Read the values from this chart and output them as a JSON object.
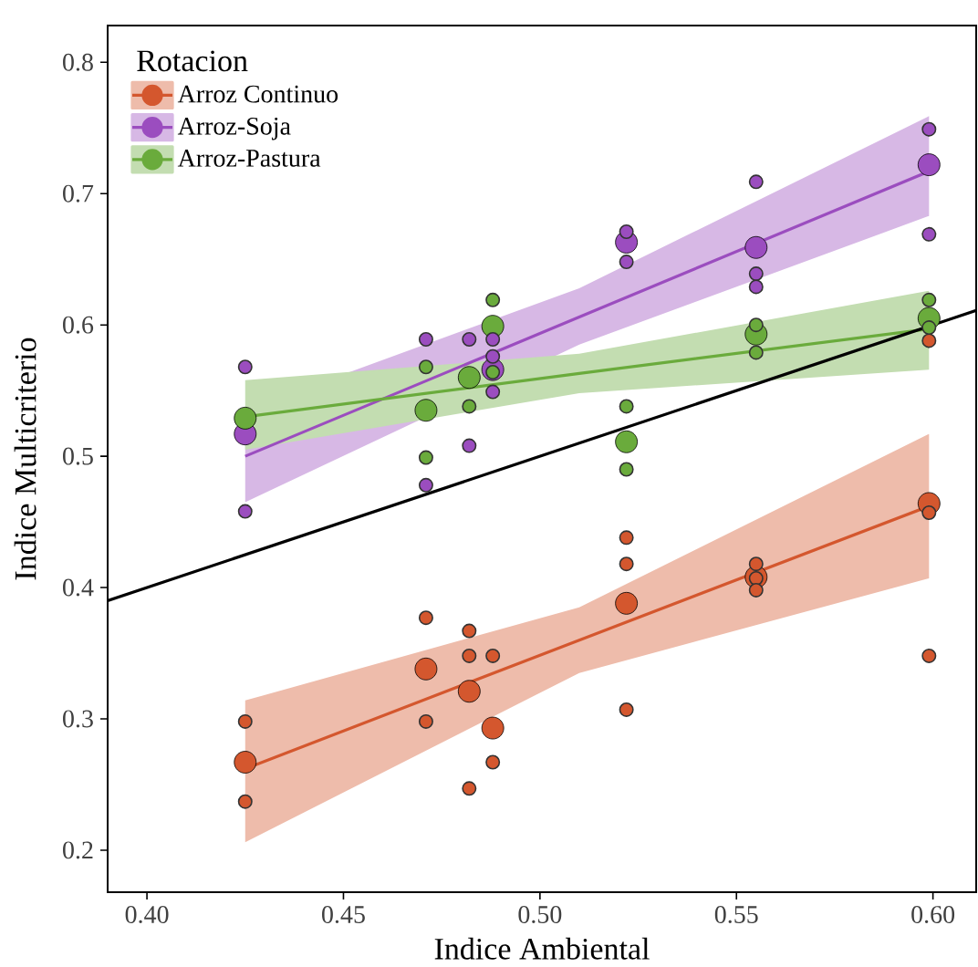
{
  "chart_data": {
    "type": "scatter",
    "xlabel": "Indice Ambiental",
    "ylabel": "Indice Multicriterio",
    "legend_title": "Rotacion",
    "legend": "top left",
    "grid": false,
    "marker": "circle",
    "xlim": [
      0.39,
      0.611
    ],
    "ylim": [
      0.168,
      0.828
    ],
    "xticks": [
      {
        "value": 0.4,
        "label": "0.40"
      },
      {
        "value": 0.45,
        "label": "0.45"
      },
      {
        "value": 0.5,
        "label": "0.50"
      },
      {
        "value": 0.55,
        "label": "0.55"
      },
      {
        "value": 0.6,
        "label": "0.60"
      }
    ],
    "yticks": [
      {
        "value": 0.2,
        "label": "0.2"
      },
      {
        "value": 0.3,
        "label": "0.3"
      },
      {
        "value": 0.4,
        "label": "0.4"
      },
      {
        "value": 0.5,
        "label": "0.5"
      },
      {
        "value": 0.6,
        "label": "0.6"
      },
      {
        "value": 0.7,
        "label": "0.7"
      },
      {
        "value": 0.8,
        "label": "0.8"
      }
    ],
    "series": [
      {
        "type": "line",
        "marker": "none",
        "name": "Arroz Continuo",
        "color": "#d4572e",
        "x": [
          0.425,
          0.51,
          0.599
        ],
        "values": [
          0.262,
          0.36,
          0.462
        ],
        "lower": [
          0.206,
          0.335,
          0.407
        ],
        "upper": [
          0.314,
          0.385,
          0.517
        ]
      },
      {
        "color": "#d4572e",
        "x": [
          0.425,
          0.425,
          0.471,
          0.471,
          0.482,
          0.482,
          0.482,
          0.488,
          0.488,
          0.522,
          0.522,
          0.522,
          0.555,
          0.555,
          0.555,
          0.599,
          0.599,
          0.599
        ],
        "values": [
          0.298,
          0.237,
          0.377,
          0.298,
          0.367,
          0.348,
          0.247,
          0.348,
          0.267,
          0.438,
          0.418,
          0.307,
          0.418,
          0.407,
          0.398,
          0.457,
          0.348,
          0.588
        ]
      },
      {
        "color": "#d4572e",
        "x": [
          0.425,
          0.471,
          0.482,
          0.488,
          0.522,
          0.555,
          0.599
        ],
        "values": [
          0.267,
          0.338,
          0.321,
          0.293,
          0.388,
          0.408,
          0.464
        ]
      },
      {
        "type": "line",
        "marker": "none",
        "name": "Arroz-Soja",
        "color": "#9b4dbf",
        "x": [
          0.425,
          0.51,
          0.599
        ],
        "values": [
          0.5,
          0.606,
          0.717
        ],
        "lower": [
          0.465,
          0.585,
          0.683
        ],
        "upper": [
          0.535,
          0.628,
          0.759
        ]
      },
      {
        "color": "#9b4dbf",
        "x": [
          0.425,
          0.425,
          0.471,
          0.471,
          0.482,
          0.482,
          0.488,
          0.488,
          0.488,
          0.522,
          0.522,
          0.555,
          0.555,
          0.555,
          0.599,
          0.599
        ],
        "values": [
          0.568,
          0.458,
          0.589,
          0.478,
          0.589,
          0.508,
          0.589,
          0.576,
          0.549,
          0.671,
          0.648,
          0.709,
          0.639,
          0.629,
          0.749,
          0.669
        ]
      },
      {
        "color": "#9b4dbf",
        "x": [
          0.425,
          0.488,
          0.522,
          0.555,
          0.599
        ],
        "values": [
          0.517,
          0.566,
          0.663,
          0.659,
          0.722
        ]
      },
      {
        "type": "line",
        "marker": "none",
        "name": "Arroz-Pastura",
        "color": "#6aab3c",
        "x": [
          0.425,
          0.51,
          0.599
        ],
        "values": [
          0.53,
          0.563,
          0.597
        ],
        "lower": [
          0.505,
          0.548,
          0.566
        ],
        "upper": [
          0.558,
          0.578,
          0.626
        ]
      },
      {
        "color": "#6aab3c",
        "x": [
          0.471,
          0.471,
          0.482,
          0.488,
          0.488,
          0.522,
          0.522,
          0.555,
          0.555,
          0.599,
          0.599
        ],
        "values": [
          0.568,
          0.499,
          0.538,
          0.619,
          0.564,
          0.538,
          0.49,
          0.6,
          0.579,
          0.619,
          0.598
        ]
      },
      {
        "color": "#6aab3c",
        "x": [
          0.425,
          0.471,
          0.482,
          0.488,
          0.522,
          0.555,
          0.599
        ],
        "values": [
          0.529,
          0.535,
          0.56,
          0.599,
          0.511,
          0.593,
          0.605
        ]
      },
      {
        "type": "line",
        "marker": "none",
        "color": "#000000",
        "x": [
          0.39,
          0.611
        ],
        "values": [
          0.39,
          0.611
        ]
      }
    ]
  }
}
